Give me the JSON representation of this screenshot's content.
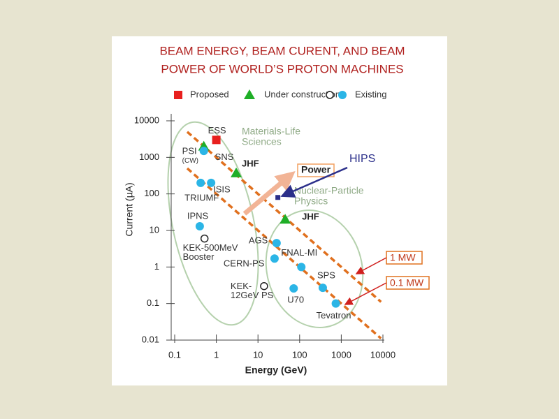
{
  "title": [
    "BEAM ENERGY, BEAM CURENT, AND BEAM",
    "POWER OF WORLD’S PROTON MACHINES"
  ],
  "chart_data": {
    "type": "scatter",
    "x_label": "Energy (GeV)",
    "y_label": "Current (µA)",
    "log_x": true,
    "log_y": true,
    "xlim": [
      0.1,
      10000
    ],
    "ylim": [
      0.01,
      10000
    ],
    "xticks": [
      0.1,
      1,
      10,
      100,
      1000,
      10000
    ],
    "yticks": [
      0.01,
      0.1,
      1,
      10,
      100,
      1000,
      10000
    ],
    "series": [
      {
        "name": "Proposed",
        "color": "#e8201e",
        "marker": "square",
        "x": [
          1
        ],
        "values": [
          3000
        ],
        "labels": [
          [
            "ESS"
          ]
        ]
      },
      {
        "name": "Under construction",
        "color": "#1fae27",
        "marker": "triangle",
        "x": [
          0.5,
          3,
          45
        ],
        "values": [
          2000,
          370,
          20
        ],
        "labels": [
          [
            "SNS"
          ],
          [
            "JHF"
          ],
          [
            "JHF"
          ]
        ]
      },
      {
        "name": "Existing",
        "color": "#2bb5e6",
        "marker": "circle",
        "x": [
          0.5,
          0.42,
          0.75,
          0.4,
          0.52,
          28,
          25,
          110,
          14,
          72,
          360,
          740
        ],
        "values": [
          1500,
          200,
          200,
          13,
          6,
          4.5,
          1.7,
          1,
          0.3,
          0.26,
          0.27,
          0.1
        ],
        "marker_styles": [
          "filled",
          "filled",
          "filled",
          "filled",
          "open",
          "filled",
          "filled",
          "filled",
          "open",
          "filled",
          "filled",
          "filled"
        ],
        "labels": [
          [
            "PSI",
            "(CW)"
          ],
          [
            "TRIUMF"
          ],
          [
            "ISIS"
          ],
          [
            "IPNS"
          ],
          [
            "KEK-500MeV",
            "Booster"
          ],
          [
            "AGS"
          ],
          [
            "CERN-PS"
          ],
          [
            "FNAL-MI"
          ],
          [
            "KEK-",
            "12GeV PS"
          ],
          [
            "U70"
          ],
          [
            "SPS"
          ],
          [
            "Tevatron"
          ]
        ]
      }
    ],
    "power_lines": [
      {
        "label": "1 MW",
        "value": 1,
        "color": "#e0701e"
      },
      {
        "label": "0.1 MW",
        "value": 0.1,
        "color": "#e0701e"
      }
    ],
    "highlight": {
      "label": "HIPS",
      "x": 30,
      "y": 80,
      "color": "#2b2f8a"
    },
    "annotations": [
      [
        "Materials-Life",
        "Sciences"
      ],
      [
        "Power"
      ],
      [
        "Nuclear-Particle",
        "Physics"
      ]
    ]
  }
}
